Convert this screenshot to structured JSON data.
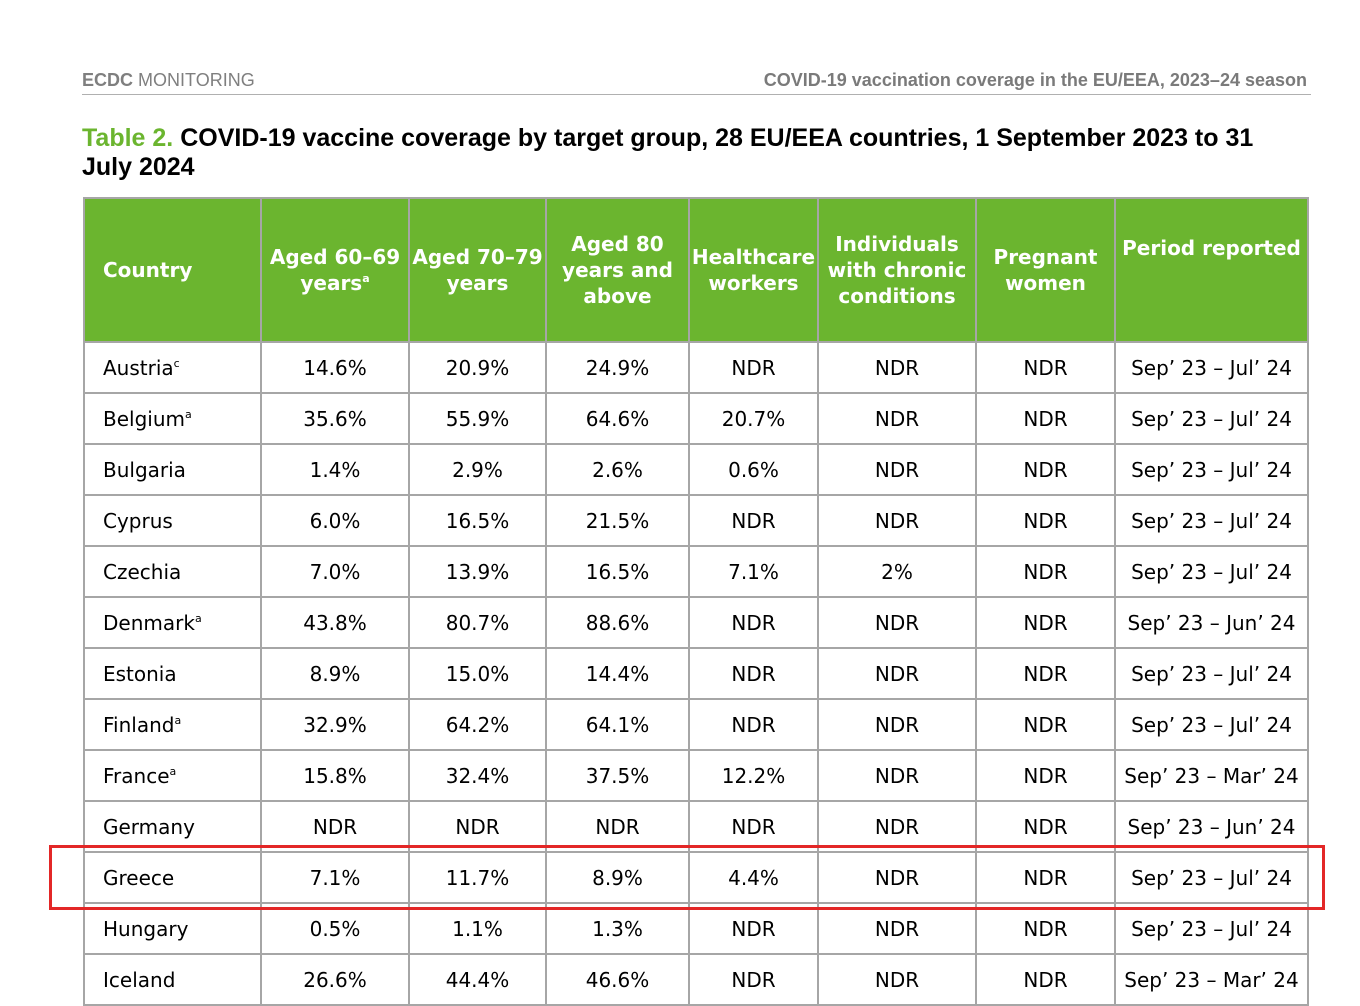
{
  "running_header": {
    "org": "ECDC",
    "section": "MONITORING",
    "title": "COVID-19 vaccination coverage in the EU/EEA, 2023–24 season"
  },
  "caption": {
    "number": "Table 2.",
    "text": "COVID-19 vaccine coverage by target group, 28 EU/EEA countries, 1 September 2023 to 31 July 2024"
  },
  "table": {
    "headers": [
      {
        "label": "Country",
        "sup": ""
      },
      {
        "label": "Aged 60–69 years",
        "sup": "a"
      },
      {
        "label": "Aged 70–79 years",
        "sup": ""
      },
      {
        "label": "Aged 80 years and above",
        "sup": ""
      },
      {
        "label": "Healthcare workers",
        "sup": ""
      },
      {
        "label": "Individuals with chronic conditions",
        "sup": ""
      },
      {
        "label": "Pregnant women",
        "sup": ""
      },
      {
        "label": "Period reported",
        "sup": ""
      }
    ],
    "rows": [
      {
        "country": "Austria",
        "sup": "c",
        "cells": [
          "14.6%",
          "20.9%",
          "24.9%",
          "NDR",
          "NDR",
          "NDR",
          "Sep’ 23 – Jul’ 24"
        ]
      },
      {
        "country": "Belgium",
        "sup": "a",
        "cells": [
          "35.6%",
          "55.9%",
          "64.6%",
          "20.7%",
          "NDR",
          "NDR",
          "Sep’ 23 – Jul’ 24"
        ]
      },
      {
        "country": "Bulgaria",
        "sup": "",
        "cells": [
          "1.4%",
          "2.9%",
          "2.6%",
          "0.6%",
          "NDR",
          "NDR",
          "Sep’ 23 – Jul’ 24"
        ]
      },
      {
        "country": "Cyprus",
        "sup": "",
        "cells": [
          "6.0%",
          "16.5%",
          "21.5%",
          "NDR",
          "NDR",
          "NDR",
          "Sep’ 23 – Jul’ 24"
        ]
      },
      {
        "country": "Czechia",
        "sup": "",
        "cells": [
          "7.0%",
          "13.9%",
          "16.5%",
          "7.1%",
          "2%",
          "NDR",
          "Sep’ 23 – Jul’ 24"
        ]
      },
      {
        "country": "Denmark",
        "sup": "a",
        "cells": [
          "43.8%",
          "80.7%",
          "88.6%",
          "NDR",
          "NDR",
          "NDR",
          "Sep’ 23 – Jun’ 24"
        ]
      },
      {
        "country": "Estonia",
        "sup": "",
        "cells": [
          "8.9%",
          "15.0%",
          "14.4%",
          "NDR",
          "NDR",
          "NDR",
          "Sep’ 23 – Jul’ 24"
        ]
      },
      {
        "country": "Finland",
        "sup": "a",
        "cells": [
          "32.9%",
          "64.2%",
          "64.1%",
          "NDR",
          "NDR",
          "NDR",
          "Sep’ 23 – Jul’ 24"
        ]
      },
      {
        "country": "France",
        "sup": "a",
        "cells": [
          "15.8%",
          "32.4%",
          "37.5%",
          "12.2%",
          "NDR",
          "NDR",
          "Sep’ 23 – Mar’ 24"
        ]
      },
      {
        "country": "Germany",
        "sup": "",
        "cells": [
          "NDR",
          "NDR",
          "NDR",
          "NDR",
          "NDR",
          "NDR",
          "Sep’ 23 – Jun’ 24"
        ]
      },
      {
        "country": "Greece",
        "sup": "",
        "cells": [
          "7.1%",
          "11.7%",
          "8.9%",
          "4.4%",
          "NDR",
          "NDR",
          "Sep’ 23 – Jul’ 24"
        ]
      },
      {
        "country": "Hungary",
        "sup": "",
        "cells": [
          "0.5%",
          "1.1%",
          "1.3%",
          "NDR",
          "NDR",
          "NDR",
          "Sep’ 23 – Jul’ 24"
        ]
      },
      {
        "country": "Iceland",
        "sup": "",
        "cells": [
          "26.6%",
          "44.4%",
          "46.6%",
          "NDR",
          "NDR",
          "NDR",
          "Sep’ 23 – Mar’ 24"
        ]
      }
    ]
  },
  "colors": {
    "header_green": "#6bb52f",
    "grid_grey": "#a6a6a6",
    "highlight_red": "#e32727"
  }
}
